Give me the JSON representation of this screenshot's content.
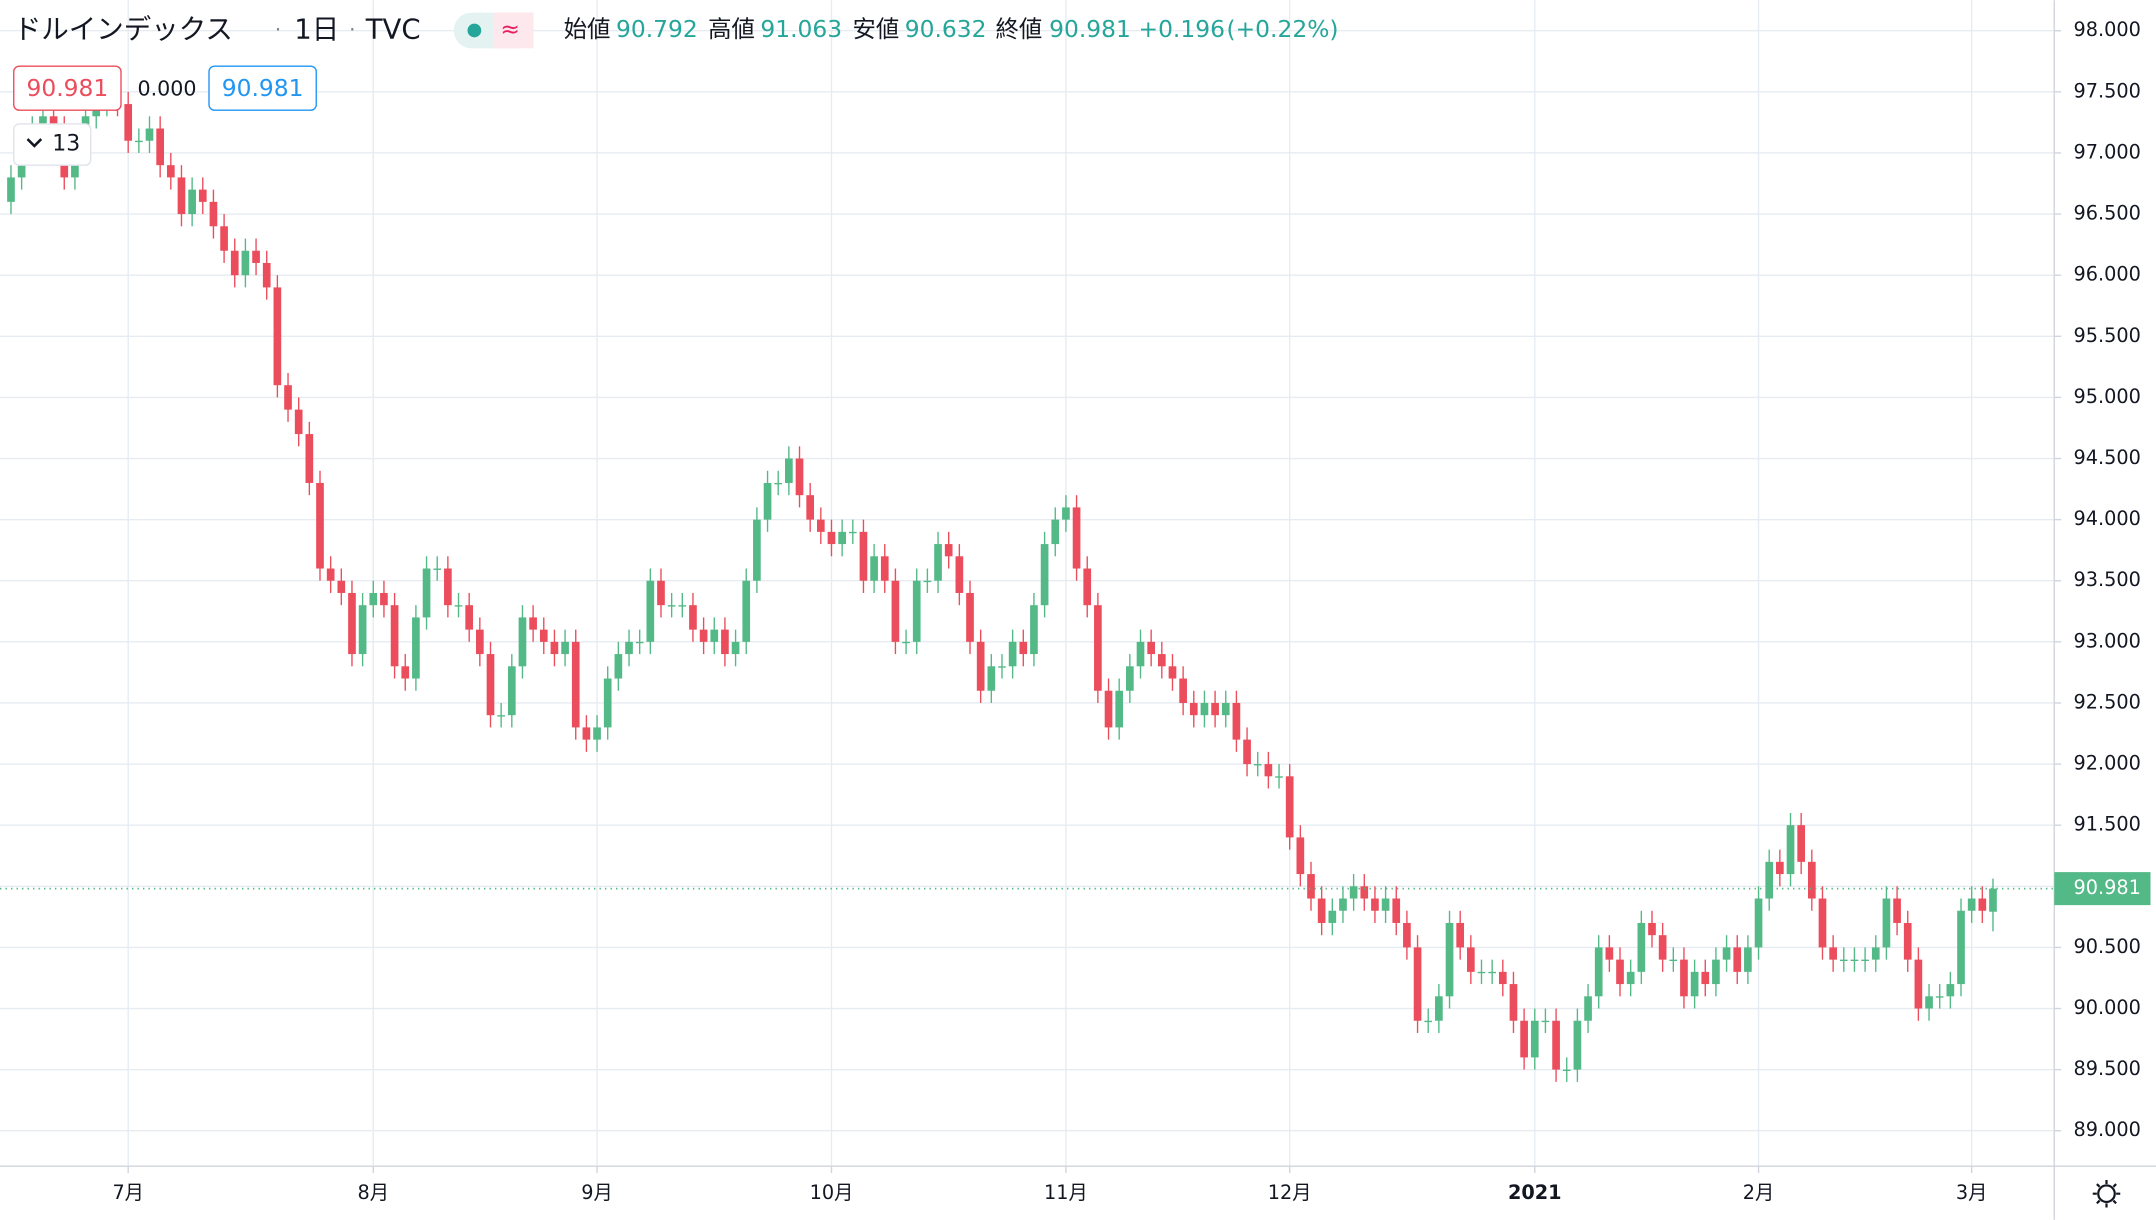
{
  "chart_data": {
    "type": "candlestick",
    "title": "ドルインデックス",
    "interval": "1日",
    "source": "TVC",
    "ohlc_labels": [
      "始値",
      "高値",
      "安値",
      "終値"
    ],
    "change": {
      "value": 0.196,
      "label": "+0.196"
    },
    "change_pct": {
      "value": 0.22,
      "label": "(+0.22%)"
    },
    "indicator_offset": "0.000",
    "indicator_count": 13,
    "up_color": "#53b987",
    "down_color": "#eb4d5c",
    "grid": true,
    "ylim": [
      88.71,
      98.25
    ],
    "yticks": [
      {
        "value": 89,
        "label": "89.000"
      },
      {
        "value": 89.5,
        "label": "89.500"
      },
      {
        "value": 90,
        "label": "90.000"
      },
      {
        "value": 90.5,
        "label": "90.500"
      },
      {
        "value": 91,
        "label": "91.000"
      },
      {
        "value": 91.5,
        "label": "91.500"
      },
      {
        "value": 92,
        "label": "92.000"
      },
      {
        "value": 92.5,
        "label": "92.500"
      },
      {
        "value": 93,
        "label": "93.000"
      },
      {
        "value": 93.5,
        "label": "93.500"
      },
      {
        "value": 94,
        "label": "94.000"
      },
      {
        "value": 94.5,
        "label": "94.500"
      },
      {
        "value": 95,
        "label": "95.000"
      },
      {
        "value": 95.5,
        "label": "95.500"
      },
      {
        "value": 96,
        "label": "96.000"
      },
      {
        "value": 96.5,
        "label": "96.500"
      },
      {
        "value": 97,
        "label": "97.000"
      },
      {
        "value": 97.5,
        "label": "97.500"
      },
      {
        "value": 98,
        "label": "98.000"
      }
    ],
    "xlim": [
      -1.03,
      191.75
    ],
    "xticks": [
      {
        "value": 11,
        "label": "7月"
      },
      {
        "value": 34,
        "label": "8月"
      },
      {
        "value": 55,
        "label": "9月"
      },
      {
        "value": 77,
        "label": "10月"
      },
      {
        "value": 99,
        "label": "11月"
      },
      {
        "value": 120,
        "label": "12月"
      },
      {
        "value": 143,
        "label": "2021"
      },
      {
        "value": 164,
        "label": "2月"
      },
      {
        "value": 184,
        "label": "3月"
      }
    ],
    "open": [
      96.6,
      96.8,
      97.1,
      97.2,
      97.3,
      97.2,
      96.8,
      97.0,
      97.3,
      97.4,
      97.5,
      97.4,
      97.1,
      97.1,
      97.2,
      96.9,
      96.8,
      96.5,
      96.7,
      96.6,
      96.4,
      96.2,
      96.0,
      96.2,
      96.1,
      95.9,
      95.1,
      94.9,
      94.7,
      94.3,
      93.6,
      93.5,
      93.4,
      92.9,
      93.3,
      93.4,
      93.3,
      92.8,
      92.7,
      93.2,
      93.6,
      93.6,
      93.3,
      93.3,
      93.1,
      92.9,
      92.4,
      92.4,
      92.8,
      93.2,
      93.1,
      93.0,
      92.9,
      93.0,
      92.3,
      92.2,
      92.3,
      92.7,
      92.9,
      93.0,
      93.0,
      93.5,
      93.3,
      93.3,
      93.3,
      93.1,
      93.0,
      93.1,
      92.9,
      93.0,
      93.5,
      94.0,
      94.3,
      94.3,
      94.5,
      94.2,
      94.0,
      93.9,
      93.8,
      93.9,
      93.9,
      93.5,
      93.7,
      93.5,
      93.0,
      93.0,
      93.5,
      93.5,
      93.8,
      93.7,
      93.4,
      93.0,
      92.6,
      92.8,
      92.8,
      93.0,
      92.9,
      93.3,
      93.8,
      94.0,
      94.1,
      93.6,
      93.3,
      92.6,
      92.3,
      92.6,
      92.8,
      93.0,
      92.9,
      92.8,
      92.7,
      92.5,
      92.4,
      92.5,
      92.4,
      92.5,
      92.2,
      92.0,
      92.0,
      91.9,
      91.9,
      91.4,
      91.1,
      90.9,
      90.7,
      90.8,
      90.9,
      91.0,
      90.9,
      90.8,
      90.9,
      90.7,
      90.5,
      89.9,
      89.9,
      90.1,
      90.7,
      90.5,
      90.3,
      90.3,
      90.3,
      90.2,
      89.9,
      89.6,
      89.9,
      89.9,
      89.5,
      89.5,
      89.9,
      90.1,
      90.5,
      90.4,
      90.2,
      90.3,
      90.7,
      90.6,
      90.4,
      90.4,
      90.1,
      90.3,
      90.2,
      90.4,
      90.5,
      90.3,
      90.5,
      90.9,
      91.2,
      91.1,
      91.5,
      91.2,
      90.9,
      90.5,
      90.4,
      90.4,
      90.4,
      90.4,
      90.5,
      90.9,
      90.7,
      90.4,
      90.0,
      90.1,
      90.1,
      90.2,
      90.8,
      90.9,
      90.792
    ],
    "high": [
      96.9,
      97.2,
      97.3,
      97.4,
      97.4,
      97.3,
      97.1,
      97.4,
      97.5,
      97.6,
      97.6,
      97.5,
      97.2,
      97.3,
      97.3,
      97.0,
      96.9,
      96.8,
      96.8,
      96.7,
      96.5,
      96.3,
      96.3,
      96.3,
      96.2,
      96.0,
      95.2,
      95.0,
      94.8,
      94.4,
      93.7,
      93.6,
      93.5,
      93.4,
      93.5,
      93.5,
      93.4,
      92.9,
      93.3,
      93.7,
      93.7,
      93.7,
      93.4,
      93.4,
      93.2,
      93.0,
      92.5,
      92.9,
      93.3,
      93.3,
      93.2,
      93.1,
      93.1,
      93.1,
      92.4,
      92.4,
      92.8,
      93.0,
      93.1,
      93.1,
      93.6,
      93.6,
      93.4,
      93.4,
      93.4,
      93.2,
      93.2,
      93.2,
      93.1,
      93.6,
      94.1,
      94.4,
      94.4,
      94.6,
      94.6,
      94.3,
      94.1,
      94.0,
      94.0,
      94.0,
      94.0,
      93.8,
      93.8,
      93.6,
      93.1,
      93.6,
      93.6,
      93.9,
      93.9,
      93.8,
      93.5,
      93.1,
      92.9,
      92.9,
      93.1,
      93.1,
      93.4,
      93.9,
      94.1,
      94.2,
      94.2,
      93.7,
      93.4,
      92.7,
      92.7,
      92.9,
      93.1,
      93.1,
      93.0,
      92.9,
      92.8,
      92.6,
      92.6,
      92.6,
      92.6,
      92.6,
      92.3,
      92.1,
      92.1,
      92.0,
      92.0,
      91.5,
      91.2,
      91.0,
      90.9,
      91.0,
      91.1,
      91.1,
      91.0,
      91.0,
      91.0,
      90.8,
      90.6,
      90.0,
      90.2,
      90.8,
      90.8,
      90.6,
      90.4,
      90.4,
      90.4,
      90.3,
      90.0,
      90.0,
      90.0,
      90.0,
      89.6,
      90.0,
      90.2,
      90.6,
      90.6,
      90.5,
      90.4,
      90.8,
      90.8,
      90.7,
      90.5,
      90.5,
      90.4,
      90.4,
      90.5,
      90.6,
      90.6,
      90.6,
      91.0,
      91.3,
      91.3,
      91.6,
      91.6,
      91.3,
      91.0,
      90.6,
      90.5,
      90.5,
      90.5,
      90.6,
      91.0,
      91.0,
      90.8,
      90.5,
      90.2,
      90.2,
      90.3,
      90.9,
      91.0,
      91.0,
      91.063
    ],
    "low": [
      96.5,
      96.7,
      97.0,
      97.1,
      97.1,
      96.7,
      96.7,
      96.9,
      97.2,
      97.3,
      97.3,
      97.0,
      97.0,
      97.0,
      96.8,
      96.7,
      96.4,
      96.4,
      96.5,
      96.3,
      96.1,
      95.9,
      95.9,
      96.0,
      95.8,
      95.0,
      94.8,
      94.6,
      94.2,
      93.5,
      93.4,
      93.3,
      92.8,
      92.8,
      93.2,
      93.2,
      92.7,
      92.6,
      92.6,
      93.1,
      93.5,
      93.2,
      93.2,
      93.0,
      92.8,
      92.3,
      92.3,
      92.3,
      92.7,
      93.0,
      92.9,
      92.8,
      92.8,
      92.2,
      92.1,
      92.1,
      92.2,
      92.6,
      92.8,
      92.9,
      92.9,
      93.2,
      93.2,
      93.2,
      93.0,
      92.9,
      92.9,
      92.8,
      92.8,
      92.9,
      93.4,
      93.9,
      94.2,
      94.2,
      94.1,
      93.9,
      93.8,
      93.7,
      93.7,
      93.8,
      93.4,
      93.4,
      93.4,
      92.9,
      92.9,
      92.9,
      93.4,
      93.4,
      93.6,
      93.3,
      92.9,
      92.5,
      92.5,
      92.7,
      92.7,
      92.8,
      92.8,
      93.2,
      93.7,
      93.9,
      93.5,
      93.2,
      92.5,
      92.2,
      92.2,
      92.5,
      92.7,
      92.8,
      92.7,
      92.6,
      92.4,
      92.3,
      92.3,
      92.3,
      92.3,
      92.1,
      91.9,
      91.9,
      91.8,
      91.8,
      91.3,
      91.0,
      90.8,
      90.6,
      90.6,
      90.7,
      90.8,
      90.8,
      90.7,
      90.7,
      90.6,
      90.4,
      89.8,
      89.8,
      89.8,
      90.0,
      90.4,
      90.2,
      90.2,
      90.2,
      90.1,
      89.8,
      89.5,
      89.5,
      89.8,
      89.4,
      89.4,
      89.4,
      89.8,
      90.0,
      90.3,
      90.1,
      90.1,
      90.2,
      90.5,
      90.3,
      90.3,
      90.0,
      90.0,
      90.1,
      90.1,
      90.3,
      90.2,
      90.2,
      90.4,
      90.8,
      91.0,
      91.0,
      91.1,
      90.8,
      90.4,
      90.3,
      90.3,
      90.3,
      90.3,
      90.3,
      90.4,
      90.6,
      90.3,
      89.9,
      89.9,
      90.0,
      90.0,
      90.1,
      90.7,
      90.7,
      90.632
    ],
    "close": [
      96.8,
      97.1,
      97.2,
      97.3,
      97.2,
      96.8,
      97.0,
      97.3,
      97.4,
      97.5,
      97.4,
      97.1,
      97.1,
      97.2,
      96.9,
      96.8,
      96.5,
      96.7,
      96.6,
      96.4,
      96.2,
      96.0,
      96.2,
      96.1,
      95.9,
      95.1,
      94.9,
      94.7,
      94.3,
      93.6,
      93.5,
      93.4,
      92.9,
      93.3,
      93.4,
      93.3,
      92.8,
      92.7,
      93.2,
      93.6,
      93.6,
      93.3,
      93.3,
      93.1,
      92.9,
      92.4,
      92.4,
      92.8,
      93.2,
      93.1,
      93.0,
      92.9,
      93.0,
      92.3,
      92.2,
      92.3,
      92.7,
      92.9,
      93.0,
      93.0,
      93.5,
      93.3,
      93.3,
      93.3,
      93.1,
      93.0,
      93.1,
      92.9,
      93.0,
      93.5,
      94.0,
      94.3,
      94.3,
      94.5,
      94.2,
      94.0,
      93.9,
      93.8,
      93.9,
      93.9,
      93.5,
      93.7,
      93.5,
      93.0,
      93.0,
      93.5,
      93.5,
      93.8,
      93.7,
      93.4,
      93.0,
      92.6,
      92.8,
      92.8,
      93.0,
      92.9,
      93.3,
      93.8,
      94.0,
      94.1,
      93.6,
      93.3,
      92.6,
      92.3,
      92.6,
      92.8,
      93.0,
      92.9,
      92.8,
      92.7,
      92.5,
      92.4,
      92.5,
      92.4,
      92.5,
      92.2,
      92.0,
      92.0,
      91.9,
      91.9,
      91.4,
      91.1,
      90.9,
      90.7,
      90.8,
      90.9,
      91.0,
      90.9,
      90.8,
      90.9,
      90.7,
      90.5,
      89.9,
      89.9,
      90.1,
      90.7,
      90.5,
      90.3,
      90.3,
      90.3,
      90.2,
      89.9,
      89.6,
      89.9,
      89.9,
      89.5,
      89.5,
      89.9,
      90.1,
      90.5,
      90.4,
      90.2,
      90.3,
      90.7,
      90.6,
      90.4,
      90.4,
      90.1,
      90.3,
      90.2,
      90.4,
      90.5,
      90.3,
      90.5,
      90.9,
      91.2,
      91.1,
      91.5,
      91.2,
      90.9,
      90.5,
      90.4,
      90.4,
      90.4,
      90.4,
      90.5,
      90.9,
      90.7,
      90.4,
      90.0,
      90.1,
      90.1,
      90.2,
      90.8,
      90.9,
      90.8,
      90.981
    ]
  }
}
